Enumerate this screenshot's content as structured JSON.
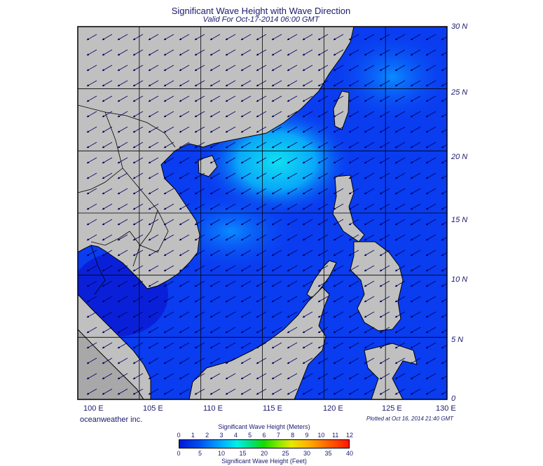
{
  "header": {
    "title": "Significant Wave Height with Wave Direction",
    "subtitle": "Valid For Oct-17-2014 06:00 GMT"
  },
  "map": {
    "lon_range": [
      100,
      130
    ],
    "lat_range": [
      0,
      30
    ],
    "grid_step_deg": 5,
    "lat_labels": [
      "30 N",
      "25 N",
      "20 N",
      "15 N",
      "10 N",
      "5 N",
      "0"
    ],
    "lon_labels": [
      "100 E",
      "105 E",
      "110 E",
      "115 E",
      "120 E",
      "125 E",
      "130 E"
    ],
    "land_color": "#c0c0c0",
    "ocean_color": "#0a3cf0",
    "wave_direction": "toward-southwest"
  },
  "footer": {
    "credit": "oceanweather inc.",
    "plotted": "Plotted at Oct 16, 2014 21:40 GMT"
  },
  "legend": {
    "meters_title": "Significant Wave Height (Meters)",
    "feet_title": "Significant Wave Height (Feet)",
    "meters_ticks": [
      "0",
      "1",
      "2",
      "3",
      "4",
      "5",
      "6",
      "7",
      "8",
      "9",
      "10",
      "11",
      "12"
    ],
    "feet_ticks": [
      "0",
      "5",
      "10",
      "15",
      "20",
      "25",
      "30",
      "35",
      "40"
    ]
  }
}
